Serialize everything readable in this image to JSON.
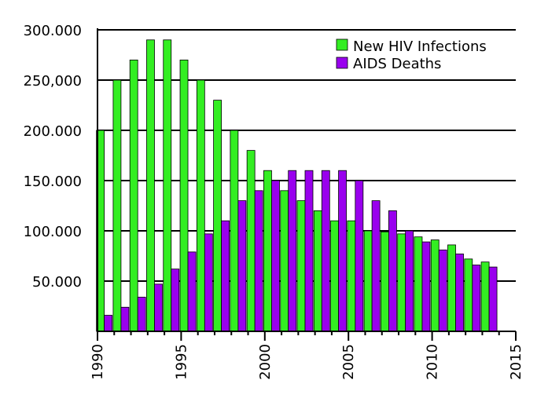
{
  "chart_data": {
    "type": "bar",
    "title": "",
    "xlabel": "",
    "ylabel": "",
    "x": [
      1990,
      1991,
      1992,
      1993,
      1994,
      1995,
      1996,
      1997,
      1998,
      1999,
      2000,
      2001,
      2002,
      2003,
      2004,
      2005,
      2006,
      2007,
      2008,
      2009,
      2010,
      2011,
      2012,
      2013
    ],
    "series": [
      {
        "name": "New HIV Infections",
        "color": "#33ee22",
        "values": [
          200000,
          250000,
          270000,
          290000,
          290000,
          270000,
          250000,
          230000,
          200000,
          180000,
          160000,
          140000,
          130000,
          120000,
          110000,
          110000,
          100000,
          99000,
          97000,
          94000,
          91000,
          86000,
          72000,
          69000
        ]
      },
      {
        "name": "AIDS Deaths",
        "color": "#9900ee",
        "values": [
          16000,
          24000,
          34000,
          47000,
          62000,
          79000,
          97000,
          110000,
          130000,
          140000,
          150000,
          160000,
          160000,
          160000,
          160000,
          150000,
          130000,
          120000,
          100000,
          89000,
          81000,
          77000,
          66000,
          64000
        ]
      }
    ],
    "ylim": [
      0,
      300000
    ],
    "xlim": [
      1990,
      2015
    ],
    "y_ticks": [
      50000,
      100000,
      150000,
      200000,
      250000,
      300000
    ],
    "y_tick_labels": [
      "50.000",
      "100.000",
      "150.000",
      "200.000",
      "250,000",
      "300.000"
    ],
    "x_ticks": [
      1990,
      1995,
      2000,
      2005,
      2010,
      2015
    ],
    "x_tick_labels": [
      "1990",
      "1995",
      "2000",
      "2005",
      "2010",
      "2015"
    ],
    "grid": true,
    "legend": {
      "position": "top-right",
      "entries": [
        "New HIV Infections",
        "AIDS Deaths"
      ]
    }
  }
}
